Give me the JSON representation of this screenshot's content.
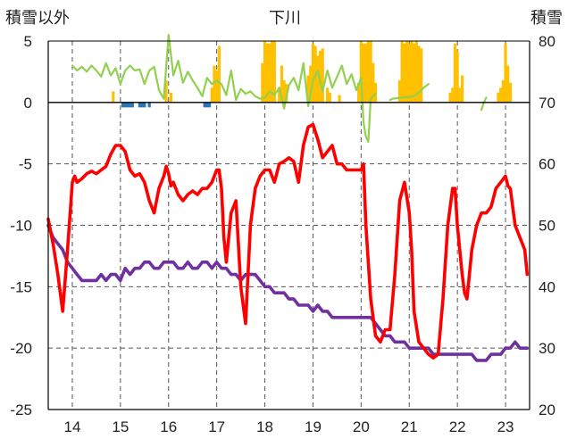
{
  "chart_data": {
    "type": "line",
    "title": "下川",
    "left_axis_label": "積雪以外",
    "right_axis_label": "積雪",
    "y_left": {
      "min": -25,
      "max": 5,
      "ticks": [
        5,
        0,
        -5,
        -10,
        -15,
        -20,
        -25
      ]
    },
    "y_right": {
      "min": 20,
      "max": 80,
      "ticks": [
        80,
        70,
        60,
        50,
        40,
        30,
        20
      ]
    },
    "x_axis": {
      "min": 13.5,
      "max": 23.5,
      "tick_labels": [
        "14",
        "15",
        "16",
        "17",
        "18",
        "19",
        "20",
        "21",
        "22",
        "23"
      ],
      "tick_values": [
        14,
        15,
        16,
        17,
        18,
        19,
        20,
        21,
        22,
        23
      ]
    },
    "grid": true,
    "colors": {
      "temperature": "#ff0000",
      "snow_depth": "#7030a0",
      "sunshine": "#92d050",
      "precipitation": "#ffc000",
      "precipitation_negative": "#2e75b6",
      "grid": "#555555",
      "zero_line": "#000000"
    },
    "series": [
      {
        "key": "temperature",
        "axis": "left",
        "x": [
          13.5,
          13.6,
          13.7,
          13.8,
          13.9,
          14.0,
          14.05,
          14.1,
          14.2,
          14.3,
          14.4,
          14.5,
          14.6,
          14.7,
          14.8,
          14.9,
          15.0,
          15.1,
          15.2,
          15.3,
          15.4,
          15.5,
          15.6,
          15.7,
          15.8,
          15.9,
          15.95,
          16.0,
          16.05,
          16.1,
          16.2,
          16.3,
          16.4,
          16.5,
          16.6,
          16.7,
          16.8,
          16.9,
          17.0,
          17.05,
          17.1,
          17.15,
          17.2,
          17.3,
          17.4,
          17.5,
          17.55,
          17.6,
          17.7,
          17.8,
          17.9,
          18.0,
          18.1,
          18.2,
          18.3,
          18.4,
          18.5,
          18.6,
          18.7,
          18.8,
          18.9,
          19.0,
          19.1,
          19.2,
          19.3,
          19.4,
          19.5,
          19.6,
          19.7,
          19.8,
          19.9,
          20.0,
          20.05,
          20.1,
          20.2,
          20.3,
          20.4,
          20.5,
          20.6,
          20.7,
          20.8,
          20.9,
          21.0,
          21.05,
          21.1,
          21.2,
          21.3,
          21.4,
          21.5,
          21.6,
          21.7,
          21.8,
          21.9,
          21.95,
          22.0,
          22.1,
          22.15,
          22.2,
          22.3,
          22.4,
          22.5,
          22.6,
          22.7,
          22.8,
          22.9,
          23.0,
          23.05,
          23.1,
          23.15,
          23.2,
          23.3,
          23.4,
          23.45
        ],
        "y": [
          -9.5,
          -11.5,
          -14,
          -17,
          -12,
          -6.5,
          -6,
          -6.5,
          -6.2,
          -5.8,
          -5.6,
          -5.8,
          -5.5,
          -5.2,
          -4.2,
          -3.5,
          -3.5,
          -4,
          -5.5,
          -6,
          -5.8,
          -6.5,
          -8,
          -9,
          -7,
          -6,
          -5.2,
          -5.8,
          -6.8,
          -6.5,
          -7.5,
          -8,
          -7.5,
          -7.2,
          -7.5,
          -7,
          -7,
          -6.5,
          -5.5,
          -5.5,
          -7,
          -11,
          -13,
          -9,
          -8,
          -15,
          -16.5,
          -18,
          -10,
          -7,
          -6,
          -5.5,
          -5.5,
          -6.5,
          -5,
          -4.8,
          -4.5,
          -4.8,
          -6.5,
          -3.5,
          -2,
          -1.8,
          -3,
          -4.5,
          -4,
          -3.5,
          -5,
          -5,
          -5.5,
          -5.5,
          -5.5,
          -5.5,
          -5,
          -10,
          -16,
          -19,
          -19.5,
          -18.5,
          -18.5,
          -14,
          -8,
          -6.5,
          -9,
          -12,
          -17,
          -19.5,
          -20,
          -20.5,
          -20.8,
          -20.5,
          -16,
          -10,
          -7,
          -7,
          -10,
          -14,
          -15.5,
          -16,
          -12,
          -10,
          -9,
          -9,
          -8.5,
          -7,
          -6.5,
          -6,
          -6.8,
          -7,
          -8.5,
          -10,
          -11,
          -12,
          -14
        ]
      },
      {
        "key": "snow_depth",
        "axis": "right",
        "x": [
          13.5,
          13.6,
          13.7,
          13.8,
          13.9,
          14.0,
          14.1,
          14.2,
          14.3,
          14.4,
          14.5,
          14.6,
          14.7,
          14.8,
          14.9,
          15.0,
          15.1,
          15.2,
          15.3,
          15.4,
          15.5,
          15.6,
          15.7,
          15.8,
          15.9,
          16.0,
          16.1,
          16.2,
          16.3,
          16.4,
          16.5,
          16.6,
          16.7,
          16.8,
          16.9,
          17.0,
          17.1,
          17.2,
          17.3,
          17.4,
          17.5,
          17.6,
          17.7,
          17.8,
          17.9,
          18.0,
          18.1,
          18.2,
          18.3,
          18.4,
          18.5,
          18.6,
          18.7,
          18.8,
          18.9,
          19.0,
          19.1,
          19.2,
          19.3,
          19.4,
          19.5,
          19.6,
          19.7,
          19.8,
          19.9,
          20.0,
          20.1,
          20.2,
          20.3,
          20.4,
          20.5,
          20.6,
          20.7,
          20.8,
          20.9,
          21.0,
          21.1,
          21.2,
          21.3,
          21.4,
          21.5,
          21.6,
          21.7,
          21.8,
          21.9,
          22.0,
          22.1,
          22.2,
          22.3,
          22.4,
          22.5,
          22.6,
          22.7,
          22.8,
          22.9,
          23.0,
          23.1,
          23.2,
          23.3,
          23.4,
          23.45
        ],
        "y": [
          50,
          48,
          47,
          46,
          44,
          43,
          42,
          41,
          41,
          41,
          41,
          42,
          41,
          42,
          42,
          41,
          43,
          42,
          43,
          43,
          44,
          44,
          43,
          43,
          44,
          44,
          44,
          43,
          43,
          44,
          43,
          43,
          44,
          44,
          43,
          44,
          43,
          43,
          42,
          42,
          41,
          42,
          42,
          42,
          41,
          40,
          40,
          39,
          39,
          39,
          38,
          38,
          37,
          37,
          37,
          36,
          37,
          36,
          36,
          35,
          35,
          35,
          35,
          35,
          35,
          35,
          35,
          35,
          34,
          33,
          32,
          32,
          31,
          31,
          31,
          30,
          30,
          30,
          30,
          30,
          29,
          29,
          29,
          29,
          29,
          29,
          29,
          29,
          29,
          28,
          28,
          28,
          29,
          29,
          29,
          30,
          30,
          31,
          30,
          30,
          30
        ]
      },
      {
        "key": "sunshine",
        "axis": "left",
        "x": [
          14.0,
          14.1,
          14.2,
          14.3,
          14.4,
          14.5,
          14.6,
          14.7,
          14.8,
          14.9,
          15.0,
          15.1,
          15.2,
          15.3,
          15.4,
          15.5,
          15.6,
          15.7,
          15.8,
          15.9,
          16.0,
          16.1,
          16.2,
          16.3,
          16.4,
          16.5,
          16.6,
          16.7,
          16.8,
          16.9,
          17.0,
          17.1,
          17.2,
          17.3,
          17.4,
          17.5,
          17.6,
          17.7,
          17.8,
          17.9,
          18.0,
          18.1,
          18.2,
          18.3,
          18.4,
          18.5,
          18.6,
          18.7,
          18.8,
          18.9,
          19.0,
          19.1,
          19.2,
          19.3,
          19.4,
          19.5,
          19.6,
          19.7,
          19.8,
          19.9,
          20.0,
          20.05,
          20.1,
          20.15,
          20.2,
          20.3
        ],
        "y": [
          3,
          2.6,
          2.9,
          2.5,
          3,
          2.6,
          2.1,
          3.2,
          2.2,
          2.8,
          1.5,
          2.6,
          3,
          2.6,
          2.7,
          1.5,
          2.6,
          2.9,
          1,
          0.3,
          5.5,
          2.2,
          3.4,
          1.6,
          2.5,
          1.8,
          1.2,
          0.5,
          2,
          1.5,
          1.8,
          1.5,
          0.6,
          2.6,
          0.2,
          1.1,
          0.7,
          0.9,
          0.5,
          0.3,
          0.4,
          0.9,
          0.6,
          1.2,
          -0.5,
          1.4,
          2,
          1,
          3.2,
          -0.3,
          1.8,
          2.6,
          0.9,
          2.6,
          1.2,
          2.1,
          3,
          1.5,
          2.3,
          1,
          2,
          -1.6,
          -2.8,
          -3.2,
          0.3,
          0.7
        ]
      },
      {
        "key": "sunshine_2",
        "axis": "left",
        "x": [
          20.6,
          20.65,
          21.1,
          21.2,
          21.3,
          21.4
        ],
        "y": [
          0.2,
          0.3,
          0.5,
          0.8,
          1.2,
          1.5
        ]
      },
      {
        "key": "sunshine_3",
        "axis": "left",
        "x": [
          22.5,
          22.55,
          22.6
        ],
        "y": [
          -0.6,
          0,
          0.4
        ]
      }
    ],
    "precipitation_bars": {
      "axis": "left",
      "x": [
        14.85,
        15.95,
        16.05,
        16.9,
        16.95,
        17.0,
        17.05,
        17.95,
        18.0,
        18.05,
        18.1,
        18.15,
        18.2,
        18.3,
        18.35,
        18.4,
        18.45,
        18.9,
        18.95,
        19.0,
        19.05,
        19.1,
        19.15,
        19.2,
        19.3,
        19.35,
        19.55,
        19.95,
        20.0,
        20.05,
        20.1,
        20.15,
        20.2,
        20.25,
        20.3,
        20.8,
        20.85,
        20.9,
        20.95,
        21.0,
        21.05,
        21.1,
        21.15,
        21.2,
        21.25,
        21.85,
        21.9,
        21.95,
        22.0,
        22.05,
        22.1,
        22.85,
        22.9,
        22.95,
        23.0,
        23.05,
        23.1
      ],
      "y": [
        0.9,
        1.8,
        0.8,
        1.2,
        3,
        2.6,
        4.6,
        3.2,
        5,
        4.8,
        4.8,
        5,
        5,
        1.2,
        3,
        1.8,
        1.5,
        2.2,
        3,
        4.8,
        4.6,
        3.8,
        4.2,
        4.4,
        1.2,
        0.8,
        0.6,
        1.6,
        5,
        4.8,
        4.8,
        5,
        5,
        3.2,
        1.6,
        1.8,
        5,
        4.8,
        5,
        4.8,
        5,
        4.8,
        5,
        4.6,
        4.4,
        0.8,
        1.2,
        4.8,
        4.2,
        1.2,
        2.2,
        0.8,
        1.2,
        1.8,
        4.8,
        3,
        1.6
      ]
    },
    "precipitation_negative_bars": {
      "axis": "left",
      "x": [
        15.05,
        15.1,
        15.15,
        15.2,
        15.25,
        15.4,
        15.45,
        15.5,
        15.6,
        16.75,
        16.8,
        16.85
      ],
      "y": [
        -0.4,
        -0.4,
        -0.4,
        -0.4,
        -0.4,
        -0.4,
        -0.4,
        -0.4,
        -0.4,
        -0.4,
        -0.4,
        -0.4
      ]
    }
  }
}
